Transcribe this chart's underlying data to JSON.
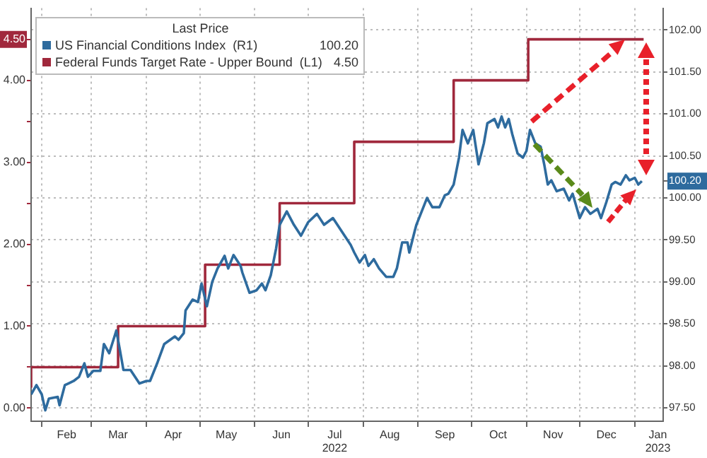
{
  "chart_data": {
    "type": "line",
    "legend_title": "Last Price",
    "legend": "top left",
    "grid": true,
    "annotations": [
      "100.20",
      "4.50"
    ],
    "xlim": [
      "2022-01-26",
      "2023-01-17"
    ],
    "xticks": [
      {
        "value": "2022-02-01",
        "label": null
      },
      {
        "value": "2022-02-15",
        "label": "Feb"
      },
      {
        "value": "2022-03-01",
        "label": null
      },
      {
        "value": "2022-03-16",
        "label": "Mar"
      },
      {
        "value": "2022-04-01",
        "label": null
      },
      {
        "value": "2022-04-16",
        "label": "Apr"
      },
      {
        "value": "2022-05-01",
        "label": null
      },
      {
        "value": "2022-05-16",
        "label": "May"
      },
      {
        "value": "2022-06-01",
        "label": null
      },
      {
        "value": "2022-06-16",
        "label": "Jun"
      },
      {
        "value": "2022-07-01",
        "label": null
      },
      {
        "value": "2022-07-16",
        "label": "Jul\n2022"
      },
      {
        "value": "2022-08-01",
        "label": null
      },
      {
        "value": "2022-08-16",
        "label": "Aug"
      },
      {
        "value": "2022-09-01",
        "label": null
      },
      {
        "value": "2022-09-16",
        "label": "Sep"
      },
      {
        "value": "2022-10-01",
        "label": null
      },
      {
        "value": "2022-10-16",
        "label": "Oct"
      },
      {
        "value": "2022-11-01",
        "label": null
      },
      {
        "value": "2022-11-16",
        "label": "Nov"
      },
      {
        "value": "2022-12-01",
        "label": null
      },
      {
        "value": "2022-12-16",
        "label": "Dec"
      },
      {
        "value": "2023-01-01",
        "label": null
      },
      {
        "value": "2023-01-14",
        "label": "Jan\n2023"
      }
    ],
    "ylim": [
      -0.16,
      4.88
    ],
    "yticks": [
      {
        "value": 0,
        "label": "0.00"
      },
      {
        "value": 0.5,
        "label": null
      },
      {
        "value": 1,
        "label": "1.00"
      },
      {
        "value": 1.5,
        "label": null
      },
      {
        "value": 2,
        "label": "2.00"
      },
      {
        "value": 2.5,
        "label": null
      },
      {
        "value": 3,
        "label": "3.00"
      },
      {
        "value": 3.5,
        "label": null
      },
      {
        "value": 4,
        "label": "4.00"
      },
      {
        "value": 4.5,
        "label": "4.50"
      }
    ],
    "y2lim": [
      97.34,
      102.26
    ],
    "y2ticks": [
      {
        "value": 97.5,
        "label": "97.50"
      },
      {
        "value": 98,
        "label": "98.00"
      },
      {
        "value": 98.5,
        "label": "98.50"
      },
      {
        "value": 99,
        "label": "99.00"
      },
      {
        "value": 99.5,
        "label": "99.50"
      },
      {
        "value": 100,
        "label": "100.00"
      },
      {
        "value": 100.2,
        "label": "100.20"
      },
      {
        "value": 100.5,
        "label": "100.50"
      },
      {
        "value": 101,
        "label": "101.00"
      },
      {
        "value": 101.5,
        "label": "101.50"
      },
      {
        "value": 102,
        "label": "102.00"
      }
    ],
    "series": [
      {
        "name": "US Financial Conditions Index  (R1)",
        "color": "#2e6b9e",
        "type": "line",
        "axis": "y2",
        "x": [
          "2022-01-26",
          "2022-01-29",
          "2022-02-01",
          "2022-02-03",
          "2022-02-05",
          "2022-02-10",
          "2022-02-11",
          "2022-02-14",
          "2022-02-16",
          "2022-02-19",
          "2022-02-22",
          "2022-02-25",
          "2022-02-27",
          "2022-03-02",
          "2022-03-06",
          "2022-03-08",
          "2022-03-11",
          "2022-03-15",
          "2022-03-17",
          "2022-03-19",
          "2022-03-23",
          "2022-03-28",
          "2022-04-01",
          "2022-04-03",
          "2022-04-07",
          "2022-04-11",
          "2022-04-17",
          "2022-04-19",
          "2022-04-22",
          "2022-04-23",
          "2022-04-27",
          "2022-04-30",
          "2022-05-02",
          "2022-05-05",
          "2022-05-08",
          "2022-05-11",
          "2022-05-15",
          "2022-05-17",
          "2022-05-20",
          "2022-05-24",
          "2022-05-25",
          "2022-05-29",
          "2022-06-02",
          "2022-06-05",
          "2022-06-07",
          "2022-06-10",
          "2022-06-13",
          "2022-06-15",
          "2022-06-19",
          "2022-06-23",
          "2022-06-27",
          "2022-07-01",
          "2022-07-06",
          "2022-07-10",
          "2022-07-15",
          "2022-07-20",
          "2022-07-25",
          "2022-07-27",
          "2022-07-30",
          "2022-08-02",
          "2022-08-04",
          "2022-08-07",
          "2022-08-10",
          "2022-08-14",
          "2022-08-18",
          "2022-08-20",
          "2022-08-23",
          "2022-08-26",
          "2022-08-27",
          "2022-08-30",
          "2022-08-31",
          "2022-09-06",
          "2022-09-09",
          "2022-09-13",
          "2022-09-16",
          "2022-09-18",
          "2022-09-21",
          "2022-09-24",
          "2022-09-26",
          "2022-09-29",
          "2022-10-02",
          "2022-10-05",
          "2022-10-08",
          "2022-10-10",
          "2022-10-14",
          "2022-10-16",
          "2022-10-18",
          "2022-10-20",
          "2022-10-22",
          "2022-10-24",
          "2022-10-27",
          "2022-10-30",
          "2022-11-01",
          "2022-11-03",
          "2022-11-06",
          "2022-11-09",
          "2022-11-11",
          "2022-11-13",
          "2022-11-15",
          "2022-11-18",
          "2022-11-22",
          "2022-11-25",
          "2022-11-27",
          "2022-12-01",
          "2022-12-04",
          "2022-12-07",
          "2022-12-11",
          "2022-12-13",
          "2022-12-16",
          "2022-12-19",
          "2022-12-21",
          "2022-12-24",
          "2022-12-27",
          "2022-12-29",
          "2023-01-01",
          "2023-01-03",
          "2023-01-05"
        ],
        "values": [
          97.66,
          97.77,
          97.66,
          97.47,
          97.61,
          97.63,
          97.53,
          97.77,
          97.79,
          97.82,
          97.87,
          98.03,
          97.87,
          97.94,
          97.94,
          98.26,
          98.15,
          98.42,
          98.19,
          97.95,
          97.95,
          97.79,
          97.82,
          97.82,
          98.03,
          98.26,
          98.35,
          98.31,
          98.39,
          98.66,
          98.79,
          98.76,
          98.98,
          98.71,
          99.0,
          99.16,
          99.31,
          99.16,
          99.32,
          99.19,
          99.11,
          98.87,
          98.9,
          98.98,
          98.9,
          99.08,
          99.4,
          99.68,
          99.84,
          99.68,
          99.55,
          99.71,
          99.81,
          99.68,
          99.76,
          99.6,
          99.44,
          99.35,
          99.23,
          99.32,
          99.19,
          99.27,
          99.16,
          99.06,
          99.06,
          99.16,
          99.47,
          99.47,
          99.35,
          99.6,
          99.68,
          100.0,
          99.89,
          99.89,
          100.03,
          100.05,
          100.16,
          100.48,
          100.81,
          100.65,
          100.81,
          100.4,
          100.65,
          100.89,
          100.94,
          100.84,
          100.97,
          100.84,
          100.94,
          100.76,
          100.53,
          100.48,
          100.56,
          100.81,
          100.65,
          100.61,
          100.4,
          100.16,
          100.21,
          100.08,
          100.11,
          99.97,
          100.05,
          99.76,
          99.89,
          99.81,
          99.87,
          99.76,
          99.95,
          100.16,
          100.19,
          100.16,
          100.27,
          100.21,
          100.24,
          100.16,
          100.2
        ]
      },
      {
        "name": "Federal Funds Target Rate - Upper Bound  (L1)",
        "color": "#a0283c",
        "type": "step",
        "axis": "y",
        "x": [
          "2022-01-26",
          "2022-03-16",
          "2022-05-04",
          "2022-06-15",
          "2022-07-27",
          "2022-09-21",
          "2022-11-02",
          "2022-12-14",
          "2023-01-06"
        ],
        "values": [
          0.25,
          0.5,
          1,
          1.75,
          2.5,
          3.25,
          4,
          4.5,
          4.5
        ]
      }
    ]
  }
}
